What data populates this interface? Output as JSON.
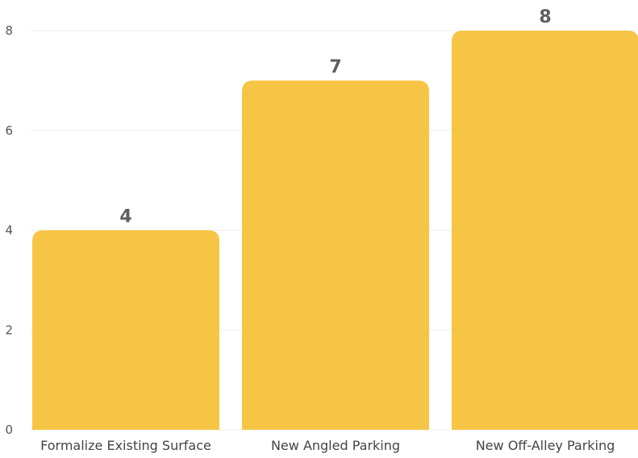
{
  "chart_data": {
    "type": "bar",
    "title": "",
    "xlabel": "",
    "ylabel": "",
    "categories": [
      "Formalize Existing Surface",
      "New Angled Parking",
      "New Off-Alley Parking"
    ],
    "values": [
      4,
      7,
      8
    ],
    "data_labels": [
      "4",
      "7",
      "8"
    ],
    "y_ticks": [
      "0",
      "2",
      "4",
      "6",
      "8"
    ],
    "ylim": [
      0,
      8
    ],
    "grid": true,
    "legend": "none",
    "bar_color": "#F7C545"
  }
}
